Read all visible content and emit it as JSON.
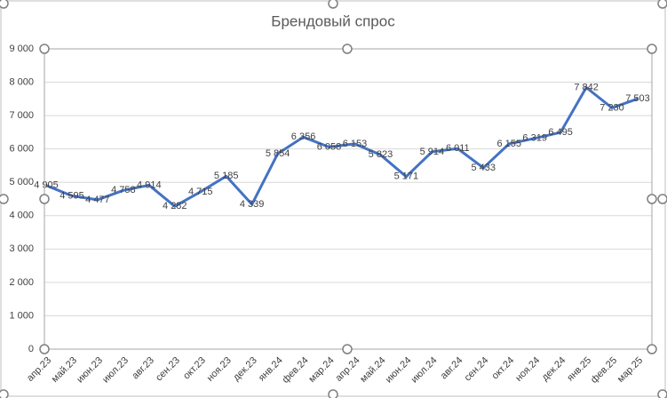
{
  "chart_data": {
    "type": "line",
    "title": "Брендовый спрос",
    "categories": [
      "апр.23",
      "май.23",
      "июн.23",
      "июл.23",
      "авг.23",
      "сен.23",
      "окт.23",
      "ноя.23",
      "дек.23",
      "янв.24",
      "фев.24",
      "мар.24",
      "апр.24",
      "май.24",
      "июн.24",
      "июл.24",
      "авг.24",
      "сен.24",
      "окт.24",
      "ноя.24",
      "дек.24",
      "янв.25",
      "фев.25",
      "мар.25"
    ],
    "values": [
      4905,
      4595,
      4477,
      4758,
      4914,
      4282,
      4715,
      5185,
      4339,
      5854,
      6356,
      6058,
      6153,
      5823,
      5171,
      5914,
      6011,
      5433,
      6155,
      6319,
      6495,
      7842,
      7230,
      7503
    ],
    "value_labels": [
      "4 905",
      "4 595",
      "4 477",
      "4 758",
      "4 914",
      "4 282",
      "4 715",
      "5 185",
      "4 339",
      "5 854",
      "6 356",
      "6 058",
      "6 153",
      "5 823",
      "5 171",
      "5 914",
      "6 011",
      "5 433",
      "6 155",
      "6 319",
      "6 495",
      "7 842",
      "7 230",
      "7 503"
    ],
    "color": "#4472c4",
    "ylim": [
      0,
      9000
    ],
    "yticks": [
      0,
      {
        "value": 1000,
        "label": "1 000"
      },
      {
        "value": 2000,
        "label": "2 000"
      },
      {
        "value": 3000,
        "label": "3 000"
      },
      {
        "value": 4000,
        "label": "4 000"
      },
      {
        "value": 5000,
        "label": "5 000"
      },
      {
        "value": 6000,
        "label": "6 000"
      },
      {
        "value": 7000,
        "label": "7 000"
      },
      {
        "value": 8000,
        "label": "8 000"
      },
      {
        "value": 9000,
        "label": "9 000"
      }
    ],
    "grid": true
  }
}
